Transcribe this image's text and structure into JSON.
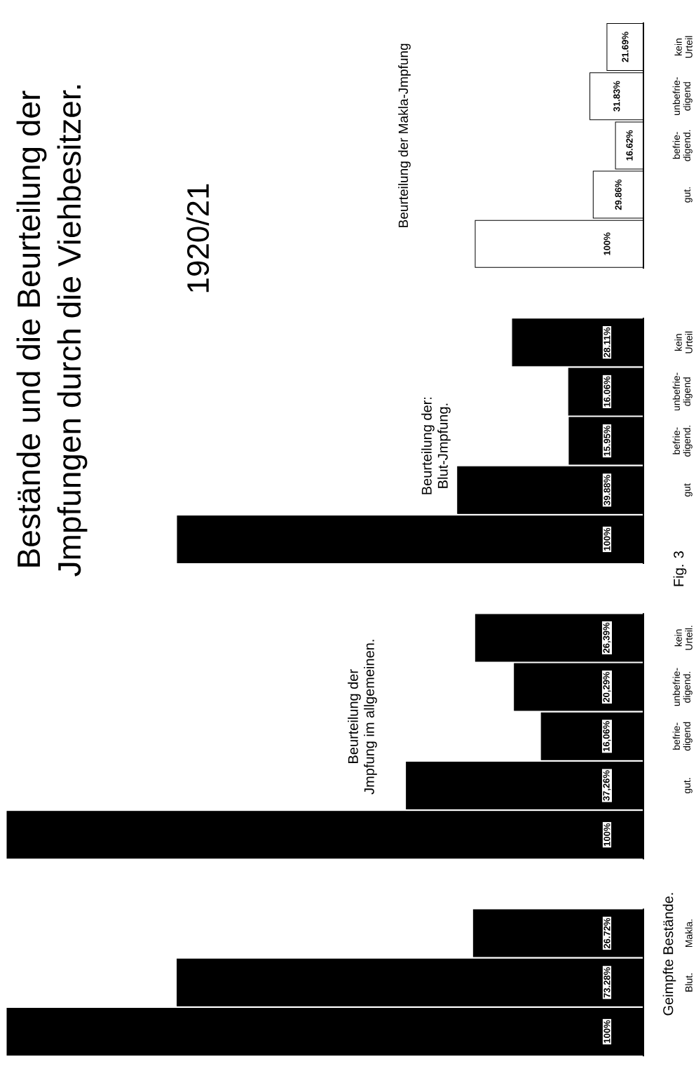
{
  "chart_data": [
    {
      "type": "bar",
      "orientation": "horizontal",
      "tick_labels": false,
      "categories": [
        "kein\nUrteil",
        "unbefrie-\ndigend",
        "befrie-\ndigend.",
        "gut.",
        null
      ],
      "values": [
        21.69,
        31.83,
        16.62,
        29.86,
        100
      ],
      "colors": [
        "#ffffff",
        "#ffffff",
        "#ffffff",
        "#ffffff",
        "#ffffff"
      ],
      "value_labels": [
        "21.69%",
        "31.83%",
        "16.62%",
        "29.86%",
        "100%"
      ],
      "annotations": [
        "Beurteilung der Makla-Jmpfung"
      ]
    },
    {
      "type": "bar",
      "orientation": "horizontal",
      "title": "Bestände und die Beurteilung der\nJmpfungen durch die Viehbesitzer.",
      "subtitle": "1920/21",
      "tick_labels": false,
      "categories": [
        "kein\nUrteil",
        "unbefrie-\ndigend",
        "befrie-\ndigend.",
        "gut",
        null
      ],
      "values": [
        28.11,
        16.06,
        15.95,
        39.88,
        100
      ],
      "colors": [
        "#000000",
        "#000000",
        "#000000",
        "#000000",
        "#000000"
      ],
      "value_labels": [
        "28.11%",
        "16.06%",
        "15.95%",
        "39.88%",
        "100%"
      ],
      "annotations": [
        "Beurteilung der:\nBlut-Jmpfung.",
        "Fig. 3"
      ]
    },
    {
      "type": "bar",
      "orientation": "horizontal",
      "tick_labels": false,
      "categories": [
        "kein\nUrteil.",
        "unbefrie-\ndigend.",
        "befrie-\ndigend",
        "gut.",
        null
      ],
      "values": [
        26.39,
        20.29,
        16.06,
        37.26,
        100
      ],
      "colors": [
        "#000000",
        "#000000",
        "#000000",
        "#000000",
        "#000000"
      ],
      "value_labels": [
        "26,39%",
        "20,29%",
        "16,06%",
        "37,26%",
        "100%"
      ],
      "annotations": [
        "Beurteilung der\nJmpfung im allgemeinen."
      ]
    },
    {
      "type": "bar",
      "orientation": "horizontal",
      "tick_labels": false,
      "categories": [
        "Makla.",
        "Blut.",
        null
      ],
      "values": [
        26.72,
        73.28,
        100
      ],
      "colors": [
        "#000000",
        "#000000",
        "#000000"
      ],
      "value_labels": [
        "26.72%",
        "73.28%",
        "100%"
      ],
      "annotations": [
        "Geimpfte Bestände."
      ]
    }
  ]
}
